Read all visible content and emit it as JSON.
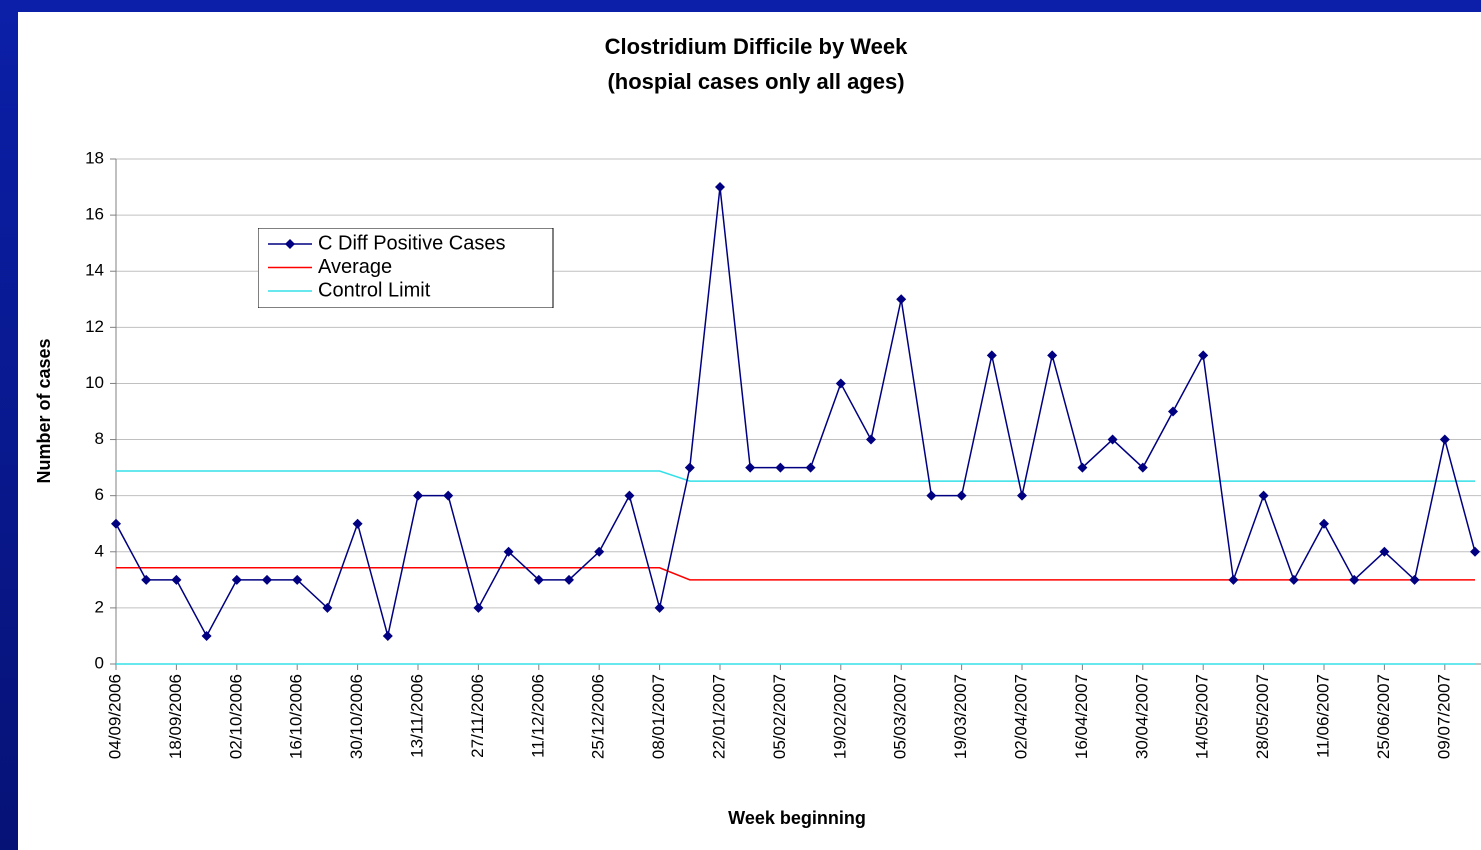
{
  "chart_data": {
    "type": "line",
    "title": "Clostridium Difficile by Week",
    "subtitle": "(hospial cases only all ages)",
    "x_label": "Week beginning",
    "y_label": "Number of cases",
    "categories": [
      "04/09/2006",
      null,
      "18/09/2006",
      null,
      "02/10/2006",
      null,
      "16/10/2006",
      null,
      "30/10/2006",
      null,
      "13/11/2006",
      null,
      "27/11/2006",
      null,
      "11/12/2006",
      null,
      "25/12/2006",
      null,
      "08/01/2007",
      null,
      "22/01/2007",
      null,
      "05/02/2007",
      null,
      "19/02/2007",
      null,
      "05/03/2007",
      null,
      "19/03/2007",
      null,
      "02/04/2007",
      null,
      "16/04/2007",
      null,
      "30/04/2007",
      null,
      "14/05/2007",
      null,
      "28/05/2007",
      null,
      "11/06/2007",
      null,
      "25/06/2007",
      null,
      "09/07/2007",
      null
    ],
    "series": [
      {
        "name": "C Diff Positive Cases",
        "color": "#000080",
        "markers": true,
        "values": [
          5,
          3,
          3,
          1,
          3,
          3,
          3,
          2,
          5,
          1,
          6,
          6,
          2,
          4,
          3,
          3,
          4,
          6,
          2,
          7,
          17,
          7,
          7,
          7,
          10,
          8,
          13,
          6,
          6,
          11,
          6,
          11,
          7,
          8,
          7,
          9,
          11,
          3,
          6,
          3,
          5,
          3,
          4,
          3,
          8,
          4
        ]
      },
      {
        "name": "Average",
        "color": "#ff0000",
        "markers": false,
        "values": [
          3.43,
          3.43,
          3.43,
          3.43,
          3.43,
          3.43,
          3.43,
          3.43,
          3.43,
          3.43,
          3.43,
          3.43,
          3.43,
          3.43,
          3.43,
          3.43,
          3.43,
          3.43,
          3.43,
          3,
          3,
          3,
          3,
          3,
          3,
          3,
          3,
          3,
          3,
          3,
          3,
          3,
          3,
          3,
          3,
          3,
          3,
          3,
          3,
          3,
          3,
          3,
          3,
          3,
          3,
          3
        ]
      },
      {
        "name": "Control Limit",
        "color": "#33e0e8",
        "markers": false,
        "values": [
          6.88,
          6.88,
          6.88,
          6.88,
          6.88,
          6.88,
          6.88,
          6.88,
          6.88,
          6.88,
          6.88,
          6.88,
          6.88,
          6.88,
          6.88,
          6.88,
          6.88,
          6.88,
          6.88,
          6.52,
          6.52,
          6.52,
          6.52,
          6.52,
          6.52,
          6.52,
          6.52,
          6.52,
          6.52,
          6.52,
          6.52,
          6.52,
          6.52,
          6.52,
          6.52,
          6.52,
          6.52,
          6.52,
          6.52,
          6.52,
          6.52,
          6.52,
          6.52,
          6.52,
          6.52,
          6.52
        ]
      },
      {
        "color": "#33e0e8",
        "markers": false,
        "values": [
          0,
          0,
          0,
          0,
          0,
          0,
          0,
          0,
          0,
          0,
          0,
          0,
          0,
          0,
          0,
          0,
          0,
          0,
          0,
          0,
          0,
          0,
          0,
          0,
          0,
          0,
          0,
          0,
          0,
          0,
          0,
          0,
          0,
          0,
          0,
          0,
          0,
          0,
          0,
          0,
          0,
          0,
          0,
          0,
          0,
          0
        ]
      }
    ],
    "ylim": [
      0,
      18
    ],
    "yticks": [
      0,
      2,
      4,
      6,
      8,
      10,
      12,
      14,
      16,
      18
    ],
    "grid": true
  }
}
